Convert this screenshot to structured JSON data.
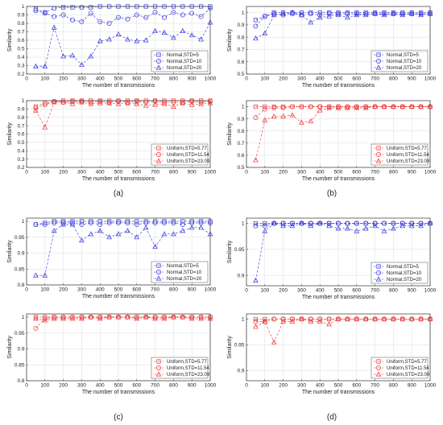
{
  "panel_labels": [
    "(a)",
    "(b)",
    "(c)",
    "(d)"
  ],
  "colors": {
    "normal": "#3333dd",
    "uniform": "#ee3333"
  },
  "chart_data": [
    {
      "type": "line",
      "panel": "(a)",
      "position": "top",
      "xlabel": "The number of transmissions",
      "ylabel": "Similarity",
      "xlim": [
        0,
        1000
      ],
      "ylim": [
        0.2,
        1
      ],
      "xticks": [
        0,
        100,
        200,
        300,
        400,
        500,
        600,
        700,
        800,
        900,
        1000
      ],
      "yticks": [
        0.2,
        0.3,
        0.4,
        0.5,
        0.6,
        0.7,
        0.8,
        0.9,
        1
      ],
      "grid": true,
      "legend": "bottom-right",
      "x": [
        50,
        100,
        150,
        200,
        250,
        300,
        350,
        400,
        450,
        500,
        550,
        600,
        650,
        700,
        750,
        800,
        850,
        900,
        950,
        1000
      ],
      "series": [
        {
          "name": "Normal,STD=5",
          "marker": "square",
          "color": "#3333dd",
          "values": [
            0.97,
            0.93,
            0.98,
            0.99,
            0.99,
            0.99,
            0.99,
            1.0,
            1.0,
            1.0,
            1.0,
            1.0,
            1.0,
            1.0,
            1.0,
            1.0,
            1.0,
            1.0,
            1.0,
            1.0
          ]
        },
        {
          "name": "Normal,STD=10",
          "marker": "circle",
          "color": "#3333dd",
          "values": [
            0.95,
            0.92,
            0.88,
            0.9,
            0.84,
            0.82,
            0.92,
            0.82,
            0.8,
            0.87,
            0.85,
            0.9,
            0.87,
            0.93,
            0.87,
            0.93,
            0.9,
            0.92,
            0.88,
            0.98
          ]
        },
        {
          "name": "Normal,STD=20",
          "marker": "triangle",
          "color": "#3333dd",
          "values": [
            0.29,
            0.29,
            0.75,
            0.41,
            0.42,
            0.31,
            0.41,
            0.59,
            0.61,
            0.67,
            0.61,
            0.59,
            0.6,
            0.71,
            0.69,
            0.63,
            0.71,
            0.66,
            0.61,
            0.81
          ]
        }
      ]
    },
    {
      "type": "line",
      "panel": "(a)",
      "position": "bottom",
      "xlabel": "The number of transmissions",
      "ylabel": "Similarity",
      "xlim": [
        0,
        1000
      ],
      "ylim": [
        0.2,
        1
      ],
      "xticks": [
        0,
        100,
        200,
        300,
        400,
        500,
        600,
        700,
        800,
        900,
        1000
      ],
      "yticks": [
        0.2,
        0.3,
        0.4,
        0.5,
        0.6,
        0.7,
        0.8,
        0.9,
        1
      ],
      "grid": true,
      "legend": "bottom-right",
      "x": [
        50,
        100,
        150,
        200,
        250,
        300,
        350,
        400,
        450,
        500,
        550,
        600,
        650,
        700,
        750,
        800,
        850,
        900,
        950,
        1000
      ],
      "series": [
        {
          "name": "Uniform,STD=5.77",
          "marker": "square",
          "color": "#ee3333",
          "values": [
            0.93,
            0.97,
            0.99,
            1.0,
            1.0,
            1.0,
            1.0,
            1.0,
            1.0,
            1.0,
            1.0,
            1.0,
            1.0,
            1.0,
            1.0,
            1.0,
            1.0,
            1.0,
            1.0,
            1.0
          ]
        },
        {
          "name": "Uniform,STD=11.54",
          "marker": "circle",
          "color": "#ee3333",
          "values": [
            0.91,
            0.95,
            0.99,
            0.98,
            0.99,
            0.99,
            0.98,
            0.99,
            0.98,
            0.99,
            0.98,
            0.99,
            0.98,
            0.99,
            0.98,
            0.98,
            0.98,
            0.99,
            0.98,
            0.99
          ]
        },
        {
          "name": "Uniform,STD=23.09",
          "marker": "triangle",
          "color": "#ee3333",
          "values": [
            0.88,
            0.68,
            0.98,
            0.98,
            0.96,
            0.98,
            0.96,
            0.97,
            0.97,
            0.96,
            0.97,
            0.96,
            0.94,
            0.95,
            0.96,
            0.93,
            0.97,
            0.95,
            0.96,
            0.97
          ]
        }
      ]
    },
    {
      "type": "line",
      "panel": "(b)",
      "position": "top",
      "xlabel": "The number of transmissions",
      "ylabel": "Similarity",
      "xlim": [
        0,
        1000
      ],
      "ylim": [
        0.5,
        1.05
      ],
      "xticks": [
        0,
        100,
        200,
        300,
        400,
        500,
        600,
        700,
        800,
        900,
        1000
      ],
      "yticks": [
        0.5,
        0.6,
        0.7,
        0.8,
        0.9,
        1
      ],
      "grid": true,
      "legend": "bottom-right",
      "x": [
        50,
        100,
        150,
        200,
        250,
        300,
        350,
        400,
        450,
        500,
        550,
        600,
        650,
        700,
        750,
        800,
        850,
        900,
        950,
        1000
      ],
      "series": [
        {
          "name": "Normal,STD=5",
          "marker": "square",
          "color": "#3333dd",
          "values": [
            0.94,
            0.97,
            1.0,
            1.0,
            1.0,
            1.0,
            1.0,
            1.0,
            1.0,
            1.0,
            1.0,
            1.0,
            1.0,
            1.0,
            1.0,
            1.0,
            1.0,
            1.0,
            1.0,
            1.0
          ]
        },
        {
          "name": "Normal,STD=10",
          "marker": "circle",
          "color": "#3333dd",
          "values": [
            0.89,
            0.97,
            0.99,
            0.98,
            0.99,
            0.98,
            0.99,
            0.98,
            0.99,
            0.99,
            0.99,
            0.99,
            0.99,
            0.99,
            0.99,
            0.99,
            0.99,
            0.99,
            0.99,
            0.99
          ]
        },
        {
          "name": "Normal,STD=20",
          "marker": "triangle",
          "color": "#3333dd",
          "values": [
            0.79,
            0.83,
            0.98,
            0.99,
            1.0,
            0.98,
            0.92,
            0.96,
            0.97,
            0.98,
            0.96,
            0.98,
            0.98,
            0.99,
            0.98,
            0.99,
            0.98,
            0.99,
            0.98,
            0.99
          ]
        }
      ]
    },
    {
      "type": "line",
      "panel": "(b)",
      "position": "bottom",
      "xlabel": "The number of transmissions",
      "ylabel": "Similarity",
      "xlim": [
        0,
        1000
      ],
      "ylim": [
        0.5,
        1.05
      ],
      "xticks": [
        0,
        100,
        200,
        300,
        400,
        500,
        600,
        700,
        800,
        900,
        1000
      ],
      "yticks": [
        0.5,
        0.6,
        0.7,
        0.8,
        0.9,
        1
      ],
      "grid": true,
      "legend": "bottom-right",
      "x": [
        50,
        100,
        150,
        200,
        250,
        300,
        350,
        400,
        450,
        500,
        550,
        600,
        650,
        700,
        750,
        800,
        850,
        900,
        950,
        1000
      ],
      "series": [
        {
          "name": "Uniform,STD=5.77",
          "marker": "square",
          "color": "#ee3333",
          "values": [
            1.0,
            1.0,
            1.0,
            1.0,
            1.0,
            1.0,
            1.0,
            1.0,
            1.0,
            1.0,
            1.0,
            1.0,
            1.0,
            1.0,
            1.0,
            1.0,
            1.0,
            1.0,
            1.0,
            1.0
          ]
        },
        {
          "name": "Uniform,STD=11.54",
          "marker": "circle",
          "color": "#ee3333",
          "values": [
            0.91,
            0.98,
            0.99,
            0.99,
            1.0,
            1.0,
            1.0,
            1.0,
            1.0,
            1.0,
            1.0,
            1.0,
            1.0,
            1.0,
            1.0,
            1.0,
            1.0,
            1.0,
            1.0,
            1.0
          ]
        },
        {
          "name": "Uniform,STD=23.09",
          "marker": "triangle",
          "color": "#ee3333",
          "values": [
            0.56,
            0.89,
            0.92,
            0.92,
            0.93,
            0.87,
            0.88,
            0.97,
            0.99,
            0.99,
            0.99,
            0.99,
            0.99,
            1.0,
            1.0,
            1.0,
            1.0,
            1.0,
            1.0,
            1.0
          ]
        }
      ]
    },
    {
      "type": "line",
      "panel": "(c)",
      "position": "top",
      "xlabel": "The number of transmissions",
      "ylabel": "Similarity",
      "xlim": [
        0,
        1000
      ],
      "ylim": [
        0.8,
        1.01
      ],
      "xticks": [
        0,
        100,
        200,
        300,
        400,
        500,
        600,
        700,
        800,
        900,
        1000
      ],
      "yticks": [
        0.8,
        0.85,
        0.9,
        0.95,
        1
      ],
      "grid": true,
      "legend": "bottom-right",
      "x": [
        50,
        100,
        150,
        200,
        250,
        300,
        350,
        400,
        450,
        500,
        550,
        600,
        650,
        700,
        750,
        800,
        850,
        900,
        950,
        1000
      ],
      "series": [
        {
          "name": "Normal,STD=5",
          "marker": "square",
          "color": "#3333dd",
          "values": [
            0.99,
            0.995,
            1.0,
            1.0,
            1.0,
            1.0,
            1.0,
            1.0,
            1.0,
            1.0,
            1.0,
            1.0,
            1.0,
            1.0,
            1.0,
            1.0,
            1.0,
            1.0,
            1.0,
            1.0
          ]
        },
        {
          "name": "Normal,STD=10",
          "marker": "circle",
          "color": "#3333dd",
          "values": [
            0.99,
            0.99,
            0.995,
            0.995,
            0.995,
            0.99,
            0.995,
            0.99,
            0.995,
            0.995,
            0.995,
            0.99,
            0.995,
            0.995,
            0.995,
            0.995,
            0.99,
            0.995,
            0.995,
            0.995
          ]
        },
        {
          "name": "Normal,STD=20",
          "marker": "triangle",
          "color": "#3333dd",
          "values": [
            0.83,
            0.83,
            0.97,
            0.99,
            0.99,
            0.94,
            0.96,
            0.97,
            0.95,
            0.96,
            0.97,
            0.95,
            0.98,
            0.92,
            0.96,
            0.96,
            0.97,
            0.98,
            0.98,
            0.96
          ]
        }
      ]
    },
    {
      "type": "line",
      "panel": "(c)",
      "position": "bottom",
      "xlabel": "The number of transmissions",
      "ylabel": "Similarity",
      "xlim": [
        0,
        1000
      ],
      "ylim": [
        0.8,
        1.01
      ],
      "xticks": [
        0,
        100,
        200,
        300,
        400,
        500,
        600,
        700,
        800,
        900,
        1000
      ],
      "yticks": [
        0.8,
        0.85,
        0.9,
        0.95,
        1
      ],
      "grid": true,
      "legend": "bottom-right",
      "x": [
        50,
        100,
        150,
        200,
        250,
        300,
        350,
        400,
        450,
        500,
        550,
        600,
        650,
        700,
        750,
        800,
        850,
        900,
        950,
        1000
      ],
      "series": [
        {
          "name": "Uniform,STD=5.77",
          "marker": "square",
          "color": "#ee3333",
          "values": [
            1.0,
            1.0,
            1.0,
            1.0,
            1.0,
            1.0,
            1.0,
            1.0,
            1.0,
            1.0,
            1.0,
            1.0,
            1.0,
            1.0,
            1.0,
            1.0,
            1.0,
            1.0,
            1.0,
            1.0
          ]
        },
        {
          "name": "Uniform,STD=11.54",
          "marker": "circle",
          "color": "#ee3333",
          "values": [
            0.965,
            0.995,
            1.0,
            1.0,
            1.0,
            1.0,
            1.0,
            1.0,
            1.0,
            1.0,
            1.0,
            1.0,
            1.0,
            1.0,
            1.0,
            1.0,
            1.0,
            1.0,
            1.0,
            1.0
          ]
        },
        {
          "name": "Uniform,STD=23.09",
          "marker": "triangle",
          "color": "#ee3333",
          "values": [
            0.995,
            0.99,
            0.995,
            0.995,
            0.995,
            0.995,
            1.0,
            0.995,
            1.0,
            1.0,
            1.0,
            0.995,
            1.0,
            0.995,
            0.995,
            1.0,
            1.0,
            0.995,
            0.995,
            0.995
          ]
        }
      ]
    },
    {
      "type": "line",
      "panel": "(d)",
      "position": "top",
      "xlabel": "The number of transmissions",
      "ylabel": "Similarity",
      "xlim": [
        0,
        1000
      ],
      "ylim": [
        0.88,
        1.01
      ],
      "xticks": [
        0,
        100,
        200,
        300,
        400,
        500,
        600,
        700,
        800,
        900,
        1000
      ],
      "yticks": [
        0.9,
        0.95,
        1
      ],
      "grid": true,
      "legend": "bottom-right",
      "x": [
        50,
        100,
        150,
        200,
        250,
        300,
        350,
        400,
        450,
        500,
        550,
        600,
        650,
        700,
        750,
        800,
        850,
        900,
        950,
        1000
      ],
      "series": [
        {
          "name": "Normal,STD=5",
          "marker": "square",
          "color": "#3333dd",
          "values": [
            1.0,
            1.0,
            1.0,
            1.0,
            1.0,
            1.0,
            1.0,
            1.0,
            1.0,
            1.0,
            1.0,
            1.0,
            1.0,
            1.0,
            1.0,
            1.0,
            1.0,
            1.0,
            1.0,
            1.0
          ]
        },
        {
          "name": "Normal,STD=10",
          "marker": "circle",
          "color": "#3333dd",
          "values": [
            0.995,
            0.995,
            1.0,
            1.0,
            1.0,
            1.0,
            1.0,
            1.0,
            1.0,
            1.0,
            1.0,
            1.0,
            1.0,
            1.0,
            1.0,
            1.0,
            1.0,
            1.0,
            1.0,
            1.0
          ]
        },
        {
          "name": "Normal,STD=20",
          "marker": "triangle",
          "color": "#3333dd",
          "values": [
            0.89,
            0.985,
            1.0,
            0.995,
            0.995,
            1.0,
            0.995,
            1.0,
            0.995,
            0.99,
            0.99,
            0.985,
            0.99,
            0.995,
            0.985,
            0.99,
            0.995,
            0.995,
            0.995,
            1.0
          ]
        }
      ]
    },
    {
      "type": "line",
      "panel": "(d)",
      "position": "bottom",
      "xlabel": "The number of transmissions",
      "ylabel": "Similarity",
      "xlim": [
        0,
        1000
      ],
      "ylim": [
        0.88,
        1.01
      ],
      "xticks": [
        0,
        100,
        200,
        300,
        400,
        500,
        600,
        700,
        800,
        900,
        1000
      ],
      "yticks": [
        0.9,
        0.95,
        1
      ],
      "grid": true,
      "legend": "bottom-right",
      "x": [
        50,
        100,
        150,
        200,
        250,
        300,
        350,
        400,
        450,
        500,
        550,
        600,
        650,
        700,
        750,
        800,
        850,
        900,
        950,
        1000
      ],
      "series": [
        {
          "name": "Uniform,STD=5.77",
          "marker": "square",
          "color": "#ee3333",
          "values": [
            1.0,
            1.0,
            1.0,
            1.0,
            1.0,
            1.0,
            1.0,
            1.0,
            1.0,
            1.0,
            1.0,
            1.0,
            1.0,
            1.0,
            1.0,
            1.0,
            1.0,
            1.0,
            1.0,
            1.0
          ]
        },
        {
          "name": "Uniform,STD=11.54",
          "marker": "circle",
          "color": "#ee3333",
          "values": [
            0.995,
            0.995,
            1.0,
            1.0,
            1.0,
            1.0,
            1.0,
            1.0,
            1.0,
            1.0,
            1.0,
            1.0,
            1.0,
            1.0,
            1.0,
            1.0,
            1.0,
            1.0,
            1.0,
            1.0
          ]
        },
        {
          "name": "Uniform,STD=23.09",
          "marker": "triangle",
          "color": "#ee3333",
          "values": [
            0.985,
            0.995,
            0.955,
            0.995,
            0.995,
            1.0,
            0.995,
            0.995,
            0.99,
            1.0,
            1.0,
            1.0,
            1.0,
            1.0,
            1.0,
            1.0,
            1.0,
            1.0,
            1.0,
            1.0
          ]
        }
      ]
    }
  ]
}
